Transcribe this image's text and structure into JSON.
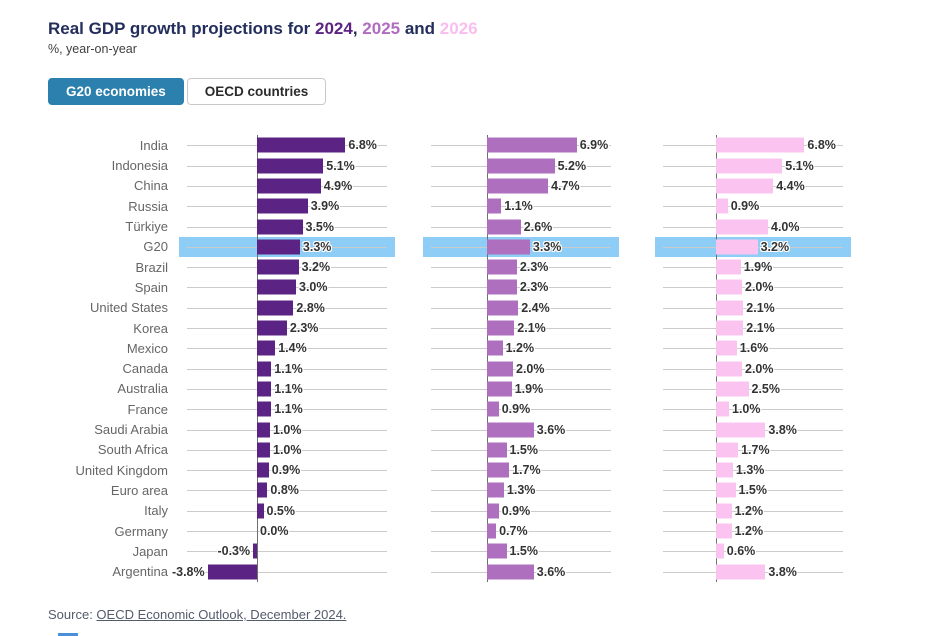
{
  "header": {
    "title_prefix": "Real GDP growth projections for ",
    "years": {
      "y2024": "2024",
      "sep1": ", ",
      "y2025": "2025",
      "sep2": " and ",
      "y2026": "2026"
    },
    "subtitle": "%, year-on-year"
  },
  "tabs": [
    {
      "label": "G20 economies",
      "active": true
    },
    {
      "label": "OECD countries",
      "active": false
    }
  ],
  "source": {
    "prefix": "Source: ",
    "link_text": "OECD Economic Outlook, December 2024."
  },
  "colors": {
    "title_navy": "#232e5c",
    "year2024_bar": "#5b2383",
    "year2025_bar": "#ae6fbe",
    "year2026_bar": "#fbc4f0",
    "highlight_band": "#8ecdf6",
    "tab_active_bg": "#2b80ad",
    "gridline": "#cbcbcb",
    "axis": "#6f6f6f"
  },
  "chart_data": {
    "type": "bar",
    "orientation": "horizontal",
    "title": "Real GDP growth projections for 2024, 2025 and 2026",
    "subtitle": "%, year-on-year",
    "value_suffix": "%",
    "highlighted_category": "G20",
    "categories": [
      "India",
      "Indonesia",
      "China",
      "Russia",
      "Türkiye",
      "G20",
      "Brazil",
      "Spain",
      "United States",
      "Korea",
      "Mexico",
      "Canada",
      "Australia",
      "France",
      "Saudi Arabia",
      "South Africa",
      "United Kingdom",
      "Euro area",
      "Italy",
      "Germany",
      "Japan",
      "Argentina"
    ],
    "series": [
      {
        "name": "2024",
        "color": "#5b2383",
        "values": [
          6.8,
          5.1,
          4.9,
          3.9,
          3.5,
          3.3,
          3.2,
          3.0,
          2.8,
          2.3,
          1.4,
          1.1,
          1.1,
          1.1,
          1.0,
          1.0,
          0.9,
          0.8,
          0.5,
          0.0,
          -0.3,
          -3.8
        ]
      },
      {
        "name": "2025",
        "color": "#ae6fbe",
        "values": [
          6.9,
          5.2,
          4.7,
          1.1,
          2.6,
          3.3,
          2.3,
          2.3,
          2.4,
          2.1,
          1.2,
          2.0,
          1.9,
          0.9,
          3.6,
          1.5,
          1.7,
          1.3,
          0.9,
          0.7,
          1.5,
          3.6
        ]
      },
      {
        "name": "2026",
        "color": "#fbc4f0",
        "values": [
          6.8,
          5.1,
          4.4,
          0.9,
          4.0,
          3.2,
          1.9,
          2.0,
          2.1,
          2.1,
          1.6,
          2.0,
          2.5,
          1.0,
          3.8,
          1.7,
          1.3,
          1.5,
          1.2,
          1.2,
          0.6,
          3.8
        ]
      }
    ],
    "axis_range_hint": [
      -4,
      7
    ],
    "grid": true,
    "legend_position": "in-title"
  }
}
